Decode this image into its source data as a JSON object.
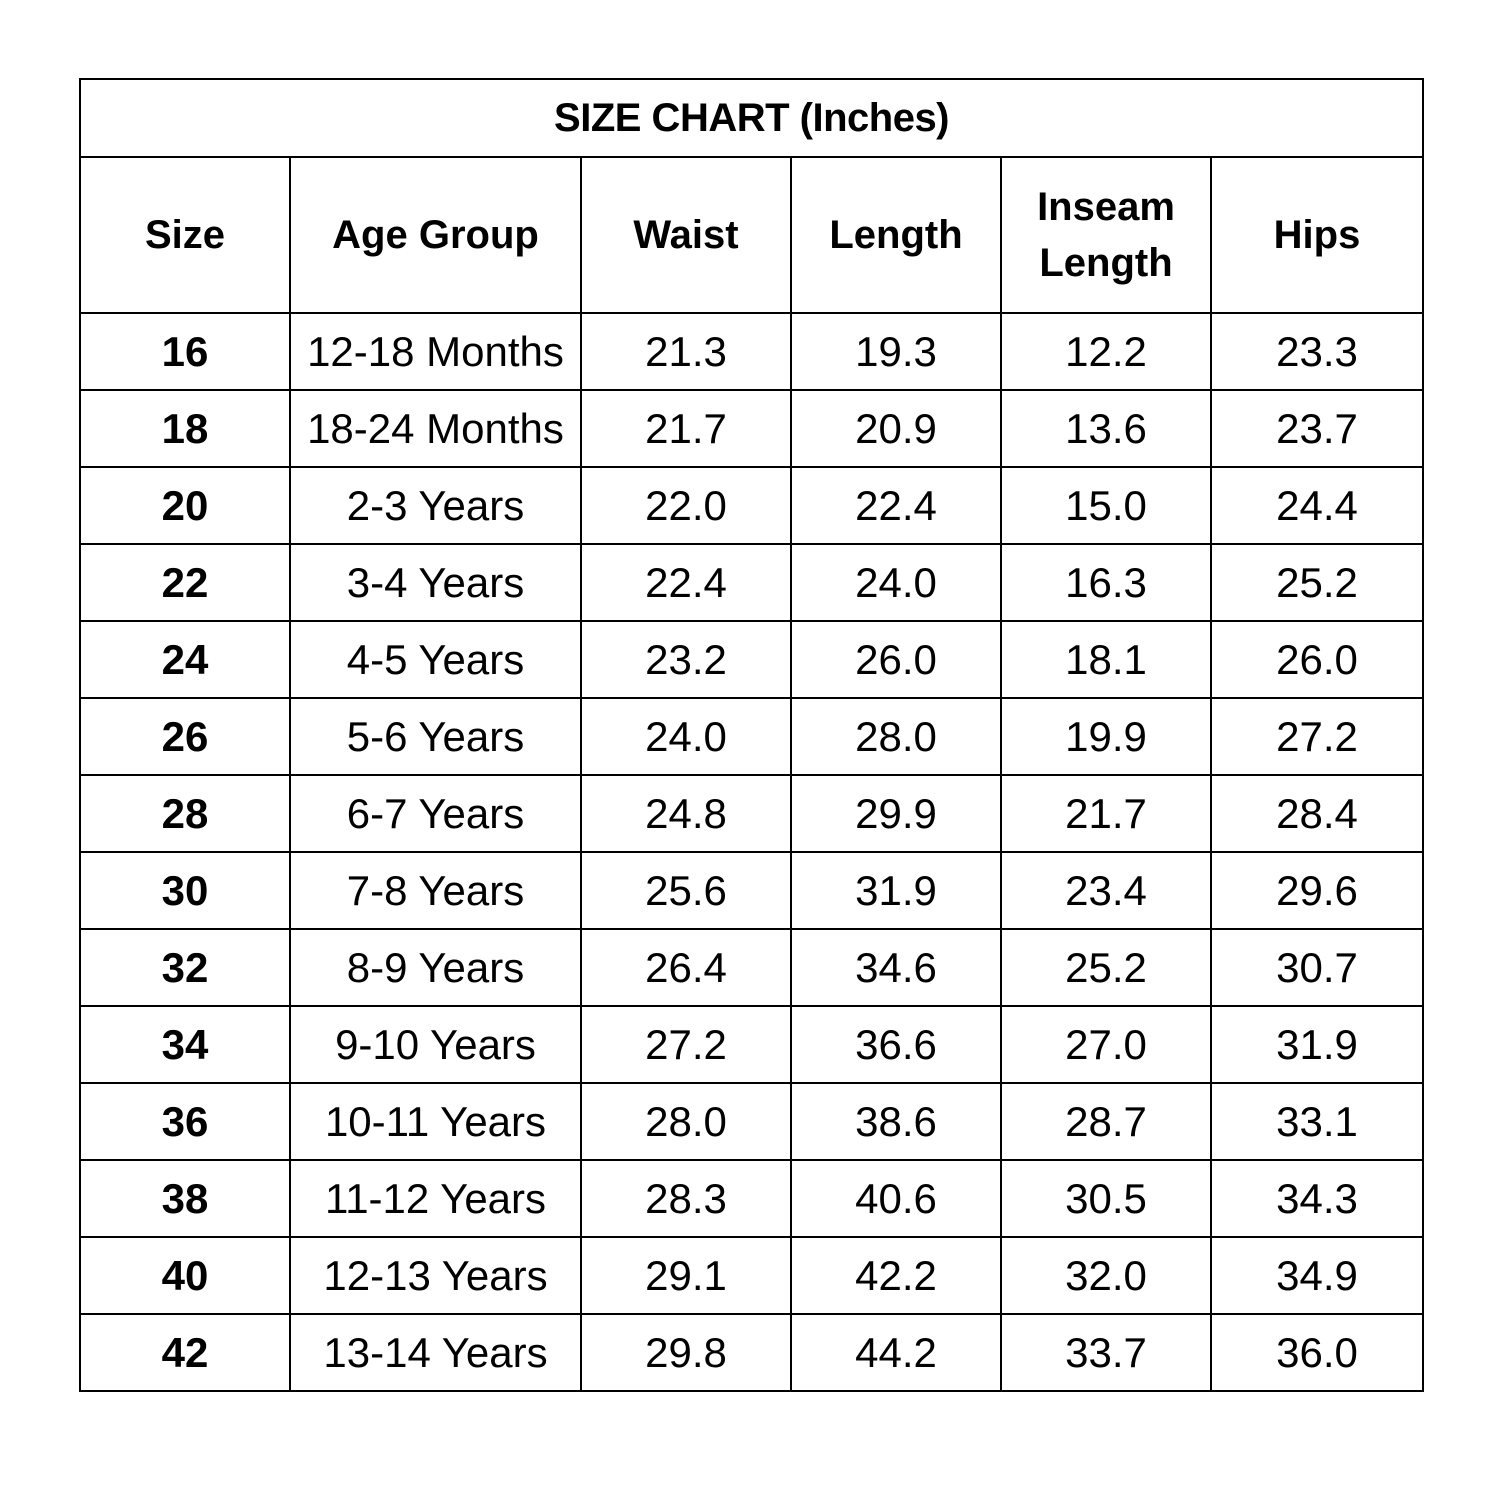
{
  "title": "SIZE CHART (Inches)",
  "headers": {
    "size": "Size",
    "age_group": "Age Group",
    "waist": "Waist",
    "length": "Length",
    "inseam_line1": "Inseam",
    "inseam_line2": "Length",
    "hips": "Hips"
  },
  "rows": [
    {
      "size": "16",
      "age": "12-18 Months",
      "waist": "21.3",
      "length": "19.3",
      "inseam": "12.2",
      "hips": "23.3"
    },
    {
      "size": "18",
      "age": "18-24 Months",
      "waist": "21.7",
      "length": "20.9",
      "inseam": "13.6",
      "hips": "23.7"
    },
    {
      "size": "20",
      "age": "2-3 Years",
      "waist": "22.0",
      "length": "22.4",
      "inseam": "15.0",
      "hips": "24.4"
    },
    {
      "size": "22",
      "age": "3-4 Years",
      "waist": "22.4",
      "length": "24.0",
      "inseam": "16.3",
      "hips": "25.2"
    },
    {
      "size": "24",
      "age": "4-5 Years",
      "waist": "23.2",
      "length": "26.0",
      "inseam": "18.1",
      "hips": "26.0"
    },
    {
      "size": "26",
      "age": "5-6 Years",
      "waist": "24.0",
      "length": "28.0",
      "inseam": "19.9",
      "hips": "27.2"
    },
    {
      "size": "28",
      "age": "6-7 Years",
      "waist": "24.8",
      "length": "29.9",
      "inseam": "21.7",
      "hips": "28.4"
    },
    {
      "size": "30",
      "age": "7-8 Years",
      "waist": "25.6",
      "length": "31.9",
      "inseam": "23.4",
      "hips": "29.6"
    },
    {
      "size": "32",
      "age": "8-9 Years",
      "waist": "26.4",
      "length": "34.6",
      "inseam": "25.2",
      "hips": "30.7"
    },
    {
      "size": "34",
      "age": "9-10 Years",
      "waist": "27.2",
      "length": "36.6",
      "inseam": "27.0",
      "hips": "31.9"
    },
    {
      "size": "36",
      "age": "10-11 Years",
      "waist": "28.0",
      "length": "38.6",
      "inseam": "28.7",
      "hips": "33.1"
    },
    {
      "size": "38",
      "age": "11-12 Years",
      "waist": "28.3",
      "length": "40.6",
      "inseam": "30.5",
      "hips": "34.3"
    },
    {
      "size": "40",
      "age": "12-13 Years",
      "waist": "29.1",
      "length": "42.2",
      "inseam": "32.0",
      "hips": "34.9"
    },
    {
      "size": "42",
      "age": "13-14 Years",
      "waist": "29.8",
      "length": "44.2",
      "inseam": "33.7",
      "hips": "36.0"
    }
  ]
}
